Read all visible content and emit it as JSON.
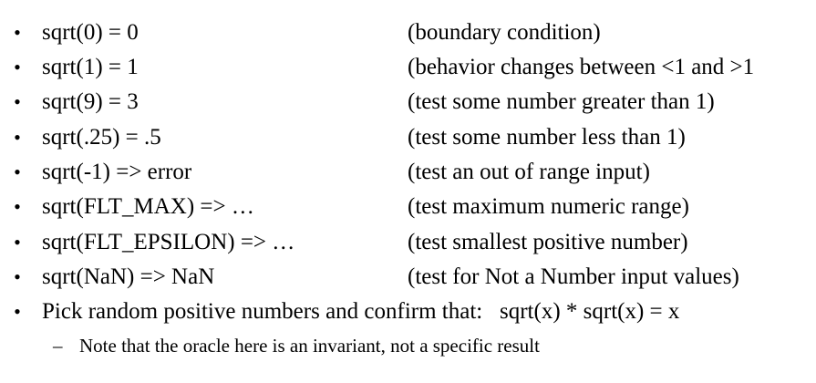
{
  "bullet_glyph": "•",
  "dash_glyph": "–",
  "cases": [
    {
      "expr": "sqrt(0) = 0",
      "note": "(boundary condition)"
    },
    {
      "expr": "sqrt(1) = 1",
      "note": "(behavior changes between <1 and >1"
    },
    {
      "expr": "sqrt(9) = 3",
      "note": "(test some number greater than 1)"
    },
    {
      "expr": "sqrt(.25) = .5",
      "note": "(test some number less than 1)"
    },
    {
      "expr": "sqrt(-1) => error",
      "note": "(test an out of range input)"
    },
    {
      "expr": "sqrt(FLT_MAX) => …",
      "note": "(test maximum numeric range)"
    },
    {
      "expr": "sqrt(FLT_EPSILON) => …",
      "note": "(test smallest positive number)"
    },
    {
      "expr": "sqrt(NaN) => NaN",
      "note": "(test for Not a Number input values)"
    }
  ],
  "final_bullet": "Pick random positive numbers and confirm that:   sqrt(x) * sqrt(x) = x",
  "sub_bullet": "Note that the oracle here is an invariant, not a specific result"
}
